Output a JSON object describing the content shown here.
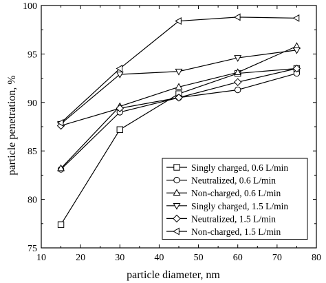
{
  "chart_data": {
    "type": "line",
    "xlabel": "particle diameter, nm",
    "ylabel": "particle penetration, %",
    "xlim": [
      10,
      80
    ],
    "ylim": [
      75,
      100
    ],
    "xticks": [
      10,
      20,
      30,
      40,
      50,
      60,
      70,
      80
    ],
    "yticks": [
      75,
      80,
      85,
      90,
      95,
      100
    ],
    "grid": false,
    "legend_position": "bottom-right",
    "x": [
      15,
      30,
      45,
      60,
      75
    ],
    "series": [
      {
        "name": "Singly charged, 0.6 L/min",
        "marker": "square",
        "values": [
          77.4,
          87.2,
          90.9,
          93.0,
          93.5
        ]
      },
      {
        "name": "Neutralized, 0.6 L/min",
        "marker": "circle",
        "values": [
          83.1,
          89.0,
          90.5,
          91.3,
          93.0
        ]
      },
      {
        "name": "Non-charged, 0.6 L/min",
        "marker": "triangle-up",
        "values": [
          83.2,
          89.6,
          91.6,
          93.1,
          95.8
        ]
      },
      {
        "name": "Singly charged, 1.5 L/min",
        "marker": "triangle-down",
        "values": [
          87.8,
          92.9,
          93.2,
          94.6,
          95.4
        ]
      },
      {
        "name": "Neutralized, 1.5 L/min",
        "marker": "diamond",
        "values": [
          87.6,
          89.4,
          90.5,
          92.1,
          93.5
        ]
      },
      {
        "name": "Non-charged, 1.5 L/min",
        "marker": "triangle-left",
        "values": [
          87.9,
          93.5,
          98.4,
          98.8,
          98.7
        ]
      }
    ]
  }
}
